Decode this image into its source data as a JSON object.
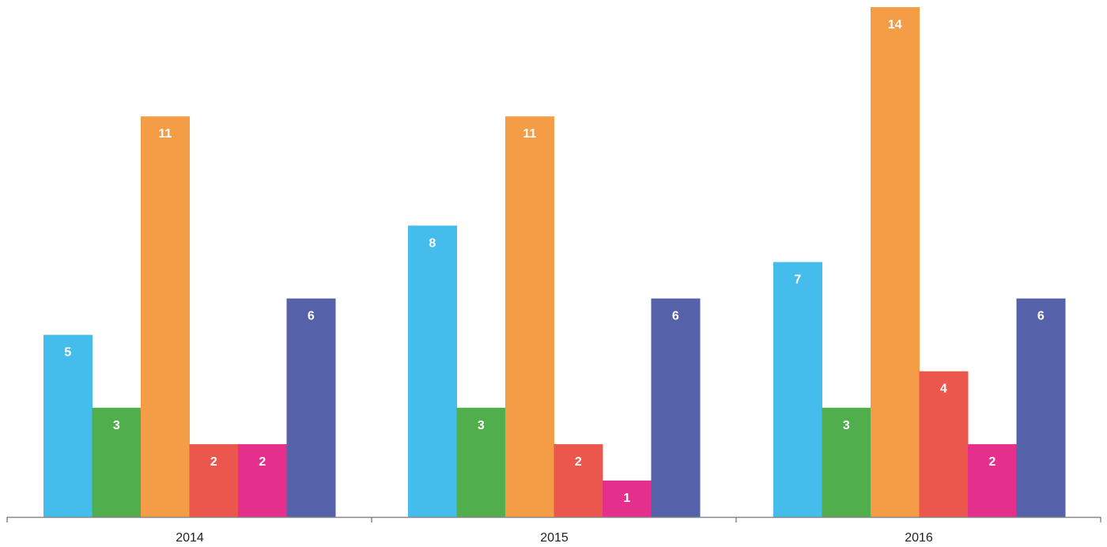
{
  "chart_data": {
    "type": "bar",
    "title": "",
    "xlabel": "",
    "ylabel": "",
    "categories": [
      "2014",
      "2015",
      "2016"
    ],
    "ylim": [
      0,
      14
    ],
    "grid": false,
    "legend": "none",
    "data_labels": true,
    "series": [
      {
        "color": "#45bdec",
        "values": [
          5,
          8,
          7
        ]
      },
      {
        "color": "#50ae4c",
        "values": [
          3,
          3,
          3
        ]
      },
      {
        "color": "#f49c46",
        "values": [
          11,
          11,
          14
        ]
      },
      {
        "color": "#eb574d",
        "values": [
          2,
          2,
          4
        ]
      },
      {
        "color": "#e4308c",
        "values": [
          2,
          1,
          2
        ]
      },
      {
        "color": "#5561a8",
        "values": [
          6,
          6,
          6
        ]
      }
    ]
  }
}
